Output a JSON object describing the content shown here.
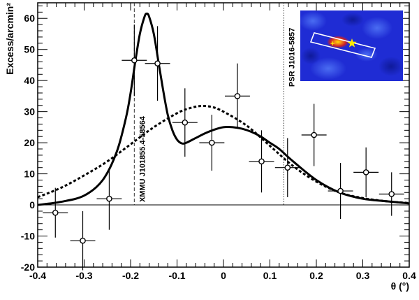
{
  "chart_data": {
    "type": "scatter",
    "xlabel": "θ (°)",
    "ylabel": "Excess/arcmin²",
    "xlim": [
      -0.4,
      0.4
    ],
    "ylim": [
      -20,
      65
    ],
    "x_ticks": [
      "-0.4",
      "-0.3",
      "-0.2",
      "-0.1",
      "0",
      "0.1",
      "0.2",
      "0.3",
      "0.4"
    ],
    "x_tick_values": [
      -0.4,
      -0.3,
      -0.2,
      -0.1,
      0,
      0.1,
      0.2,
      0.3,
      0.4
    ],
    "y_ticks": [
      "-20",
      "-10",
      "0",
      "10",
      "20",
      "30",
      "40",
      "50",
      "60"
    ],
    "y_tick_values": [
      -20,
      -10,
      0,
      10,
      20,
      30,
      40,
      50,
      60
    ],
    "series": [
      {
        "style": "points-with-errorbars",
        "x": [
          -0.362,
          -0.303,
          -0.246,
          -0.192,
          -0.142,
          -0.083,
          -0.025,
          0.03,
          0.082,
          0.138,
          0.195,
          0.252,
          0.307,
          0.362
        ],
        "y": [
          -2.5,
          -11.5,
          2.0,
          46.5,
          45.5,
          26.5,
          20.0,
          35.0,
          14.0,
          12.0,
          22.5,
          4.5,
          10.5,
          3.5
        ],
        "xerr": [
          0.027,
          0.027,
          0.027,
          0.027,
          0.027,
          0.027,
          0.027,
          0.027,
          0.027,
          0.027,
          0.027,
          0.027,
          0.027,
          0.027
        ],
        "yerr": [
          8.0,
          9.5,
          10.0,
          11.5,
          12.0,
          11.0,
          9.0,
          10.5,
          10.0,
          9.5,
          10.0,
          9.0,
          8.0,
          7.0
        ]
      },
      {
        "style": "solid-line",
        "x": [
          -0.4,
          -0.35,
          -0.3,
          -0.26,
          -0.23,
          -0.21,
          -0.2,
          -0.19,
          -0.18,
          -0.17,
          -0.165,
          -0.16,
          -0.15,
          -0.14,
          -0.13,
          -0.12,
          -0.11,
          -0.1,
          -0.09,
          -0.08,
          -0.06,
          -0.04,
          -0.02,
          0.0,
          0.02,
          0.04,
          0.06,
          0.08,
          0.1,
          0.12,
          0.15,
          0.2,
          0.25,
          0.3,
          0.35,
          0.4
        ],
        "y": [
          0.0,
          1.0,
          3.0,
          8.0,
          17.0,
          28.0,
          36.0,
          46.0,
          55.0,
          60.5,
          61.5,
          60.5,
          55.0,
          46.0,
          37.0,
          29.0,
          24.0,
          21.0,
          19.8,
          20.0,
          21.5,
          23.0,
          24.2,
          25.0,
          25.0,
          24.5,
          23.5,
          22.0,
          20.0,
          18.0,
          14.0,
          8.0,
          4.0,
          2.0,
          1.2,
          0.5
        ]
      },
      {
        "style": "dashed-line",
        "x": [
          -0.4,
          -0.35,
          -0.3,
          -0.25,
          -0.2,
          -0.15,
          -0.1,
          -0.075,
          -0.05,
          -0.025,
          0.0,
          0.05,
          0.1,
          0.15,
          0.2,
          0.25,
          0.3,
          0.35,
          0.4
        ],
        "y": [
          2.5,
          5.5,
          9.5,
          14.0,
          19.5,
          25.0,
          29.5,
          31.0,
          31.8,
          31.5,
          30.0,
          25.5,
          19.0,
          12.5,
          7.5,
          4.0,
          2.2,
          1.2,
          0.6
        ]
      }
    ],
    "reference_lines": [
      {
        "x": -0.192,
        "label": "XMMU J101855.4-58564",
        "style": "dashed"
      },
      {
        "x": 0.13,
        "label": "PSR J1016-5857",
        "style": "dotted"
      }
    ],
    "inset": {
      "type": "heatmap",
      "colors": {
        "background": "#1e2ad6",
        "hot": "#e0251c",
        "warm": "#f07d1a",
        "star": "#ffea00"
      }
    }
  }
}
